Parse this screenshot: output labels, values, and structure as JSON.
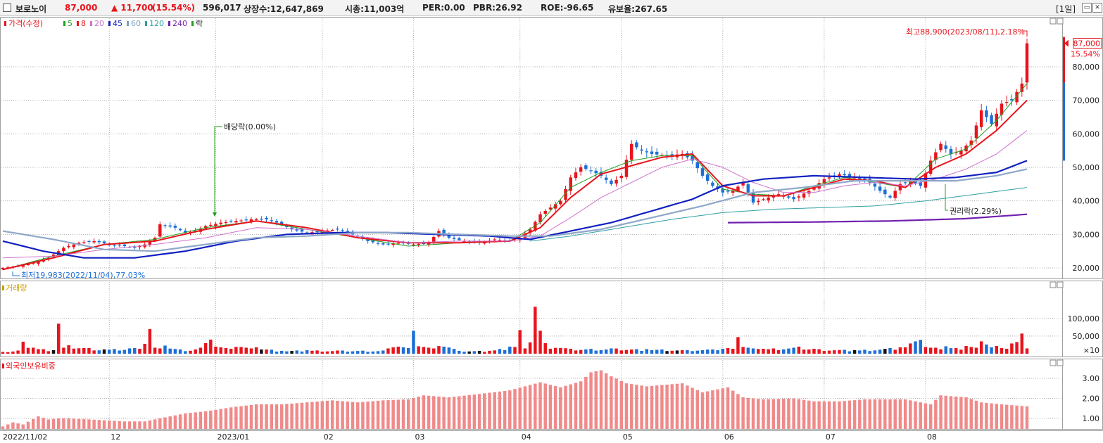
{
  "header": {
    "name": "보로노이",
    "price": "87,000",
    "change": "▲ 11,700",
    "change_pct": "(15.54%)",
    "volume": "596,017",
    "shares": "상장수:12,647,869",
    "mcap": "시총:11,003억",
    "per": "PER:0.00",
    "pbr": "PBR:26.92",
    "roe": "ROE:-96.65",
    "float": "유보율:267.65",
    "period": "[1일]",
    "icons": [
      "restore-icon",
      "close-icon"
    ]
  },
  "price_panel": {
    "legend": [
      {
        "text": "가격(수정)",
        "color": "#e8141c",
        "swatch": "#e8141c"
      },
      {
        "text": "5",
        "color": "#20a020",
        "swatch": "#20a020"
      },
      {
        "text": "8",
        "color": "#e8141c",
        "swatch": "#e8141c"
      },
      {
        "text": "20",
        "color": "#d070d0",
        "swatch": "#d070d0"
      },
      {
        "text": "45",
        "color": "#1020c0",
        "swatch": "#1020c0"
      },
      {
        "text": "60",
        "color": "#7f9fc0",
        "swatch": "#7f9fc0"
      },
      {
        "text": "120",
        "color": "#30a0a0",
        "swatch": "#30a0a0"
      },
      {
        "text": "240",
        "color": "#7020b0",
        "swatch": "#7020b0"
      },
      {
        "text": "락",
        "color": "#222222",
        "swatch": "#20a020"
      }
    ],
    "annotations": {
      "high": "최고88,900(2023/08/11),2.18%",
      "low": "최저19,983(2022/11/04),77.03%",
      "dividend": "배당락(0.00%)",
      "rights": "권리락(2.29%)"
    },
    "last_price_tag": "87,000",
    "last_pct_tag": "15.54%",
    "y_ticks": [
      "80,000",
      "70,000",
      "60,000",
      "50,000",
      "40,000",
      "30,000",
      "20,000"
    ]
  },
  "volume_panel": {
    "legend": "거래량",
    "legend_color": "#c8a000",
    "y_ticks": [
      "100,000",
      "50,000"
    ],
    "unit": "×10"
  },
  "foreign_panel": {
    "legend": "외국인보유비중",
    "legend_color": "#e8141c",
    "y_ticks": [
      "3.00",
      "2.00",
      "1.00"
    ]
  },
  "x_labels": [
    "2022/11/02",
    "12",
    "2023/01",
    "02",
    "03",
    "04",
    "05",
    "06",
    "07",
    "08"
  ],
  "colors": {
    "up": "#e8141c",
    "down": "#1c6fd6",
    "foreign": "#f08a8a",
    "grid": "#b0b0b0"
  },
  "chart_data": {
    "type": "candlestick",
    "anchors": {
      "dates": [
        "2022-11-02",
        "2023-08-11"
      ],
      "note_candle_index_of": {
        "12": 21,
        "2023/01": 42,
        "02": 63,
        "03": 81,
        "04": 102,
        "05": 122,
        "06": 142,
        "07": 162,
        "08": 182
      }
    },
    "close_anchors": [
      [
        0,
        20000
      ],
      [
        3,
        20500
      ],
      [
        6,
        21500
      ],
      [
        9,
        23000
      ],
      [
        12,
        26000
      ],
      [
        15,
        27500
      ],
      [
        18,
        28000
      ],
      [
        21,
        27000
      ],
      [
        24,
        26500
      ],
      [
        26,
        26000
      ],
      [
        28,
        27000
      ],
      [
        30,
        29000
      ],
      [
        31,
        33000
      ],
      [
        34,
        32000
      ],
      [
        36,
        30500
      ],
      [
        38,
        31000
      ],
      [
        40,
        32500
      ],
      [
        43,
        33500
      ],
      [
        46,
        34000
      ],
      [
        49,
        34500
      ],
      [
        52,
        34500
      ],
      [
        54,
        33500
      ],
      [
        57,
        31500
      ],
      [
        60,
        30500
      ],
      [
        63,
        31000
      ],
      [
        66,
        31500
      ],
      [
        69,
        30000
      ],
      [
        72,
        28000
      ],
      [
        75,
        27000
      ],
      [
        78,
        27500
      ],
      [
        81,
        27000
      ],
      [
        84,
        27500
      ],
      [
        86,
        31000
      ],
      [
        88,
        29000
      ],
      [
        91,
        28000
      ],
      [
        94,
        27500
      ],
      [
        97,
        28500
      ],
      [
        100,
        28000
      ],
      [
        102,
        29000
      ],
      [
        104,
        31500
      ],
      [
        106,
        36000
      ],
      [
        108,
        38000
      ],
      [
        110,
        40000
      ],
      [
        112,
        47000
      ],
      [
        114,
        50000
      ],
      [
        116,
        49000
      ],
      [
        118,
        47500
      ],
      [
        120,
        45000
      ],
      [
        122,
        47500
      ],
      [
        124,
        57000
      ],
      [
        126,
        55000
      ],
      [
        128,
        54000
      ],
      [
        131,
        53500
      ],
      [
        134,
        54000
      ],
      [
        136,
        52000
      ],
      [
        138,
        47500
      ],
      [
        140,
        44500
      ],
      [
        142,
        42500
      ],
      [
        144,
        43000
      ],
      [
        146,
        45500
      ],
      [
        148,
        39500
      ],
      [
        150,
        40500
      ],
      [
        153,
        42000
      ],
      [
        156,
        40500
      ],
      [
        159,
        43000
      ],
      [
        162,
        46500
      ],
      [
        165,
        48000
      ],
      [
        168,
        47000
      ],
      [
        171,
        45500
      ],
      [
        173,
        43000
      ],
      [
        175,
        41000
      ],
      [
        177,
        45000
      ],
      [
        179,
        46000
      ],
      [
        181,
        44500
      ],
      [
        183,
        52000
      ],
      [
        185,
        57000
      ],
      [
        187,
        54000
      ],
      [
        189,
        55000
      ],
      [
        191,
        58000
      ],
      [
        193,
        67000
      ],
      [
        195,
        63000
      ],
      [
        197,
        69000
      ],
      [
        199,
        70000
      ],
      [
        201,
        75000
      ],
      [
        202,
        87000
      ]
    ],
    "ma_series": {
      "ma5": [
        [
          0,
          19500
        ],
        [
          10,
          23500
        ],
        [
          20,
          27000
        ],
        [
          30,
          28500
        ],
        [
          40,
          32000
        ],
        [
          50,
          34000
        ],
        [
          60,
          31500
        ],
        [
          70,
          29000
        ],
        [
          80,
          26500
        ],
        [
          90,
          27500
        ],
        [
          100,
          28000
        ],
        [
          106,
          33500
        ],
        [
          112,
          44000
        ],
        [
          118,
          48500
        ],
        [
          124,
          52000
        ],
        [
          130,
          53500
        ],
        [
          136,
          53500
        ],
        [
          142,
          43500
        ],
        [
          148,
          42000
        ],
        [
          154,
          41500
        ],
        [
          160,
          44500
        ],
        [
          166,
          47000
        ],
        [
          172,
          45500
        ],
        [
          178,
          44000
        ],
        [
          184,
          52500
        ],
        [
          190,
          55500
        ],
        [
          196,
          64000
        ],
        [
          202,
          75000
        ]
      ],
      "ma8": [
        [
          0,
          19500
        ],
        [
          10,
          23000
        ],
        [
          20,
          27000
        ],
        [
          30,
          28000
        ],
        [
          40,
          31500
        ],
        [
          50,
          34000
        ],
        [
          60,
          32000
        ],
        [
          70,
          29000
        ],
        [
          80,
          27500
        ],
        [
          90,
          27500
        ],
        [
          100,
          28000
        ],
        [
          106,
          32000
        ],
        [
          112,
          41000
        ],
        [
          118,
          48000
        ],
        [
          124,
          50500
        ],
        [
          130,
          53000
        ],
        [
          136,
          54000
        ],
        [
          142,
          44500
        ],
        [
          148,
          41500
        ],
        [
          154,
          41500
        ],
        [
          160,
          44000
        ],
        [
          166,
          46500
        ],
        [
          172,
          46000
        ],
        [
          178,
          44000
        ],
        [
          184,
          50000
        ],
        [
          190,
          54000
        ],
        [
          196,
          61000
        ],
        [
          202,
          70000
        ]
      ],
      "ma20": [
        [
          0,
          23000
        ],
        [
          10,
          23500
        ],
        [
          20,
          25500
        ],
        [
          30,
          27000
        ],
        [
          40,
          29000
        ],
        [
          50,
          32000
        ],
        [
          60,
          31500
        ],
        [
          70,
          29500
        ],
        [
          80,
          27500
        ],
        [
          90,
          28000
        ],
        [
          100,
          28000
        ],
        [
          106,
          29500
        ],
        [
          112,
          35000
        ],
        [
          118,
          41000
        ],
        [
          124,
          45500
        ],
        [
          130,
          50000
        ],
        [
          136,
          52500
        ],
        [
          142,
          50000
        ],
        [
          148,
          45500
        ],
        [
          154,
          42500
        ],
        [
          160,
          42500
        ],
        [
          166,
          44500
        ],
        [
          172,
          45500
        ],
        [
          178,
          44500
        ],
        [
          184,
          46500
        ],
        [
          190,
          49500
        ],
        [
          196,
          54000
        ],
        [
          202,
          61000
        ]
      ],
      "ma45": [
        [
          0,
          28000
        ],
        [
          8,
          25000
        ],
        [
          16,
          23000
        ],
        [
          26,
          23000
        ],
        [
          36,
          25000
        ],
        [
          46,
          28000
        ],
        [
          56,
          30000
        ],
        [
          66,
          30500
        ],
        [
          76,
          30500
        ],
        [
          86,
          30000
        ],
        [
          96,
          29500
        ],
        [
          104,
          28500
        ],
        [
          112,
          31000
        ],
        [
          120,
          33500
        ],
        [
          128,
          37000
        ],
        [
          136,
          40500
        ],
        [
          142,
          44500
        ],
        [
          150,
          46500
        ],
        [
          160,
          47500
        ],
        [
          170,
          47000
        ],
        [
          180,
          46500
        ],
        [
          188,
          47000
        ],
        [
          196,
          48500
        ],
        [
          202,
          52000
        ]
      ],
      "ma60": [
        [
          0,
          31000
        ],
        [
          10,
          28500
        ],
        [
          20,
          25500
        ],
        [
          30,
          25000
        ],
        [
          40,
          27000
        ],
        [
          50,
          29000
        ],
        [
          60,
          29500
        ],
        [
          70,
          30500
        ],
        [
          80,
          30500
        ],
        [
          90,
          30000
        ],
        [
          100,
          29500
        ],
        [
          108,
          29500
        ],
        [
          118,
          31500
        ],
        [
          128,
          35000
        ],
        [
          138,
          38500
        ],
        [
          148,
          42500
        ],
        [
          158,
          44000
        ],
        [
          168,
          46000
        ],
        [
          178,
          46000
        ],
        [
          188,
          46000
        ],
        [
          196,
          47500
        ],
        [
          202,
          49500
        ]
      ],
      "ma120": [
        [
          104,
          28000
        ],
        [
          112,
          29500
        ],
        [
          122,
          32000
        ],
        [
          132,
          34500
        ],
        [
          142,
          36500
        ],
        [
          152,
          37500
        ],
        [
          162,
          38000
        ],
        [
          172,
          38500
        ],
        [
          182,
          40000
        ],
        [
          192,
          42000
        ],
        [
          202,
          44000
        ]
      ],
      "ma240": [
        [
          143,
          33500
        ],
        [
          160,
          33700
        ],
        [
          175,
          34000
        ],
        [
          190,
          34700
        ],
        [
          202,
          36000
        ]
      ]
    },
    "volume": [
      [
        0,
        5
      ],
      [
        3,
        9
      ],
      [
        4,
        34
      ],
      [
        6,
        17
      ],
      [
        10,
        10
      ],
      [
        11,
        85
      ],
      [
        13,
        24
      ],
      [
        20,
        12
      ],
      [
        25,
        15
      ],
      [
        28,
        28
      ],
      [
        29,
        70
      ],
      [
        32,
        23
      ],
      [
        35,
        12
      ],
      [
        38,
        12
      ],
      [
        40,
        30
      ],
      [
        41,
        40
      ],
      [
        50,
        18
      ],
      [
        55,
        8
      ],
      [
        60,
        10
      ],
      [
        66,
        9
      ],
      [
        75,
        9
      ],
      [
        81,
        65
      ],
      [
        90,
        8
      ],
      [
        96,
        8
      ],
      [
        100,
        20
      ],
      [
        102,
        67
      ],
      [
        104,
        32
      ],
      [
        105,
        133
      ],
      [
        106,
        65
      ],
      [
        107,
        30
      ],
      [
        112,
        14
      ],
      [
        120,
        15
      ],
      [
        127,
        13
      ],
      [
        135,
        10
      ],
      [
        140,
        12
      ],
      [
        142,
        14
      ],
      [
        145,
        47
      ],
      [
        150,
        14
      ],
      [
        157,
        20
      ],
      [
        160,
        14
      ],
      [
        168,
        10
      ],
      [
        175,
        16
      ],
      [
        177,
        18
      ],
      [
        179,
        29
      ],
      [
        180,
        35
      ],
      [
        181,
        39
      ],
      [
        184,
        17
      ],
      [
        186,
        21
      ],
      [
        188,
        16
      ],
      [
        190,
        22
      ],
      [
        193,
        35
      ],
      [
        194,
        26
      ],
      [
        196,
        22
      ],
      [
        199,
        29
      ],
      [
        200,
        33
      ],
      [
        201,
        57
      ]
    ],
    "foreign_pct": [
      [
        0,
        0.6
      ],
      [
        2,
        0.8
      ],
      [
        4,
        0.7
      ],
      [
        7,
        1.1
      ],
      [
        9,
        0.95
      ],
      [
        11,
        1.0
      ],
      [
        13,
        1.0
      ],
      [
        17,
        0.95
      ],
      [
        24,
        0.85
      ],
      [
        28,
        0.85
      ],
      [
        33,
        1.1
      ],
      [
        36,
        1.25
      ],
      [
        40,
        1.35
      ],
      [
        45,
        1.55
      ],
      [
        50,
        1.7
      ],
      [
        55,
        1.7
      ],
      [
        60,
        1.8
      ],
      [
        65,
        1.9
      ],
      [
        70,
        1.8
      ],
      [
        75,
        1.9
      ],
      [
        80,
        1.95
      ],
      [
        83,
        2.15
      ],
      [
        88,
        2.05
      ],
      [
        95,
        2.25
      ],
      [
        100,
        2.4
      ],
      [
        106,
        2.8
      ],
      [
        110,
        2.55
      ],
      [
        114,
        2.85
      ],
      [
        116,
        3.3
      ],
      [
        118,
        3.4
      ],
      [
        120,
        3.1
      ],
      [
        123,
        2.75
      ],
      [
        127,
        2.6
      ],
      [
        134,
        2.75
      ],
      [
        138,
        2.3
      ],
      [
        143,
        2.55
      ],
      [
        146,
        2.05
      ],
      [
        150,
        1.95
      ],
      [
        156,
        2.0
      ],
      [
        160,
        1.85
      ],
      [
        165,
        1.85
      ],
      [
        170,
        1.95
      ],
      [
        178,
        1.95
      ],
      [
        183,
        1.7
      ],
      [
        185,
        2.15
      ],
      [
        190,
        2.05
      ],
      [
        193,
        1.8
      ],
      [
        197,
        1.7
      ],
      [
        202,
        1.6
      ]
    ],
    "ylim_price": [
      18000,
      90000
    ]
  }
}
